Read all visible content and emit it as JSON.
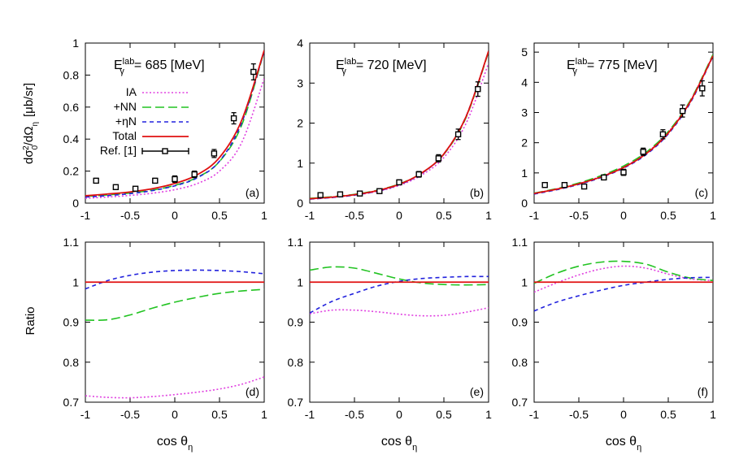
{
  "figure": {
    "ylabel_top_main": "dσ",
    "ylabel_top_sub": "0",
    "ylabel_top_sup": "2",
    "ylabel_top_rest": "/dΩ",
    "ylabel_top_rest_sub": "η",
    "ylabel_top_unit": "[μb/sr]",
    "ylabel_bottom": "Ratio",
    "xlabel_main": "cos θ",
    "xlabel_sub": "η",
    "energy_prefix": "E",
    "energy_sup": "lab",
    "energy_sub": "γ"
  },
  "legend": {
    "placement": "top-left (panel a)",
    "entries": [
      {
        "label": "IA",
        "color": "#e040e0",
        "dash": "dotted"
      },
      {
        "label": "+NN",
        "color": "#22c322",
        "dash": "long-dash"
      },
      {
        "label": "+ηN",
        "color": "#2222dd",
        "dash": "short-dash"
      },
      {
        "label": "Total",
        "color": "#e01010",
        "dash": "solid"
      },
      {
        "label": "Ref. [1]",
        "color": "#000000",
        "dash": "points"
      }
    ]
  },
  "colors": {
    "IA": "#e040e0",
    "NN": "#22c322",
    "etaN": "#2222dd",
    "Total": "#e01010",
    "data": "#000000"
  },
  "chart_data": [
    {
      "panel": "(a)",
      "type": "line",
      "energy_value": "= 685 [MeV]",
      "xlim": [
        -1,
        1
      ],
      "ylim": [
        0,
        1
      ],
      "xticks": [
        "-1",
        "-0.5",
        "0",
        "0.5",
        "1"
      ],
      "yticks": [
        "0",
        "0.2",
        "0.4",
        "0.6",
        "0.8",
        "1"
      ],
      "xlabel": "",
      "ylabel": "dσ_0^2/dΩ_η [μb/sr]",
      "series": [
        {
          "name": "IA",
          "x": [
            -1,
            -0.75,
            -0.5,
            -0.25,
            0,
            0.25,
            0.5,
            0.75,
            1
          ],
          "y": [
            0.03,
            0.038,
            0.048,
            0.062,
            0.084,
            0.122,
            0.2,
            0.38,
            0.78
          ]
        },
        {
          "name": "+NN",
          "x": [
            -1,
            -0.75,
            -0.5,
            -0.25,
            0,
            0.25,
            0.5,
            0.75,
            1
          ],
          "y": [
            0.042,
            0.051,
            0.063,
            0.081,
            0.111,
            0.161,
            0.26,
            0.49,
            0.95
          ]
        },
        {
          "name": "+ηN",
          "x": [
            -1,
            -0.75,
            -0.5,
            -0.25,
            0,
            0.25,
            0.5,
            0.75,
            1
          ],
          "y": [
            0.038,
            0.047,
            0.059,
            0.078,
            0.108,
            0.158,
            0.262,
            0.505,
            0.95
          ]
        },
        {
          "name": "Total",
          "x": [
            -1,
            -0.75,
            -0.5,
            -0.25,
            0,
            0.25,
            0.5,
            0.75,
            1
          ],
          "y": [
            0.046,
            0.057,
            0.07,
            0.09,
            0.123,
            0.177,
            0.285,
            0.52,
            0.955
          ]
        }
      ],
      "points": {
        "name": "Ref. [1]",
        "x": [
          -0.88,
          -0.66,
          -0.44,
          -0.22,
          0.0,
          0.22,
          0.44,
          0.66,
          0.88
        ],
        "y": [
          0.14,
          0.1,
          0.09,
          0.14,
          0.15,
          0.18,
          0.31,
          0.53,
          0.82
        ],
        "err": [
          0.015,
          0.012,
          0.012,
          0.015,
          0.02,
          0.02,
          0.025,
          0.035,
          0.05
        ]
      }
    },
    {
      "panel": "(b)",
      "type": "line",
      "energy_value": "= 720 [MeV]",
      "xlim": [
        -1,
        1
      ],
      "ylim": [
        0,
        4
      ],
      "xticks": [
        "-1",
        "-0.5",
        "0",
        "0.5",
        "1"
      ],
      "yticks": [
        "0",
        "1",
        "2",
        "3",
        "4"
      ],
      "xlabel": "",
      "ylabel": "",
      "series": [
        {
          "name": "IA",
          "x": [
            -1,
            -0.75,
            -0.5,
            -0.25,
            0,
            0.25,
            0.5,
            0.75,
            1
          ],
          "y": [
            0.1,
            0.14,
            0.2,
            0.29,
            0.44,
            0.7,
            1.14,
            2.0,
            3.5
          ]
        },
        {
          "name": "+NN",
          "x": [
            -1,
            -0.75,
            -0.5,
            -0.25,
            0,
            0.25,
            0.5,
            0.75,
            1
          ],
          "y": [
            0.12,
            0.16,
            0.22,
            0.32,
            0.48,
            0.75,
            1.22,
            2.15,
            3.78
          ]
        },
        {
          "name": "+ηN",
          "x": [
            -1,
            -0.75,
            -0.5,
            -0.25,
            0,
            0.25,
            0.5,
            0.75,
            1
          ],
          "y": [
            0.1,
            0.14,
            0.2,
            0.3,
            0.46,
            0.74,
            1.23,
            2.18,
            3.8
          ]
        },
        {
          "name": "Total",
          "x": [
            -1,
            -0.75,
            -0.5,
            -0.25,
            0,
            0.25,
            0.5,
            0.75,
            1
          ],
          "y": [
            0.11,
            0.15,
            0.21,
            0.31,
            0.47,
            0.75,
            1.23,
            2.17,
            3.8
          ]
        }
      ],
      "points": {
        "name": "Ref. [1]",
        "x": [
          -0.88,
          -0.66,
          -0.44,
          -0.22,
          0.0,
          0.22,
          0.44,
          0.66,
          0.88
        ],
        "y": [
          0.2,
          0.22,
          0.24,
          0.3,
          0.52,
          0.72,
          1.12,
          1.72,
          2.85
        ],
        "err": [
          0.04,
          0.04,
          0.04,
          0.05,
          0.06,
          0.07,
          0.09,
          0.13,
          0.18
        ]
      }
    },
    {
      "panel": "(c)",
      "type": "line",
      "energy_value": "= 775 [MeV]",
      "xlim": [
        -1,
        1
      ],
      "ylim": [
        0,
        5.3
      ],
      "xticks": [
        "-1",
        "-0.5",
        "0",
        "0.5",
        "1"
      ],
      "yticks": [
        "0",
        "1",
        "2",
        "3",
        "4",
        "5"
      ],
      "xlabel": "",
      "ylabel": "",
      "series": [
        {
          "name": "IA",
          "x": [
            -1,
            -0.75,
            -0.5,
            -0.25,
            0,
            0.25,
            0.5,
            0.75,
            1
          ],
          "y": [
            0.32,
            0.47,
            0.65,
            0.89,
            1.2,
            1.65,
            2.35,
            3.4,
            4.9
          ]
        },
        {
          "name": "+NN",
          "x": [
            -1,
            -0.75,
            -0.5,
            -0.25,
            0,
            0.25,
            0.5,
            0.75,
            1
          ],
          "y": [
            0.33,
            0.48,
            0.67,
            0.91,
            1.23,
            1.68,
            2.37,
            3.42,
            4.92
          ]
        },
        {
          "name": "+ηN",
          "x": [
            -1,
            -0.75,
            -0.5,
            -0.25,
            0,
            0.25,
            0.5,
            0.75,
            1
          ],
          "y": [
            0.3,
            0.44,
            0.62,
            0.85,
            1.16,
            1.6,
            2.29,
            3.34,
            4.86
          ]
        },
        {
          "name": "Total",
          "x": [
            -1,
            -0.75,
            -0.5,
            -0.25,
            0,
            0.25,
            0.5,
            0.75,
            1
          ],
          "y": [
            0.32,
            0.46,
            0.64,
            0.87,
            1.18,
            1.63,
            2.32,
            3.38,
            4.88
          ]
        }
      ],
      "points": {
        "name": "Ref. [1]",
        "x": [
          -0.88,
          -0.66,
          -0.44,
          -0.22,
          0.0,
          0.22,
          0.44,
          0.66,
          0.88
        ],
        "y": [
          0.6,
          0.6,
          0.55,
          0.85,
          1.02,
          1.7,
          2.28,
          3.05,
          3.8
        ],
        "err": [
          0.06,
          0.06,
          0.06,
          0.08,
          0.1,
          0.12,
          0.15,
          0.2,
          0.25
        ]
      }
    },
    {
      "panel": "(d)",
      "type": "line",
      "xlim": [
        -1,
        1
      ],
      "ylim": [
        0.7,
        1.1
      ],
      "xticks": [
        "-1",
        "-0.5",
        "0",
        "0.5",
        "1"
      ],
      "yticks": [
        "0.7",
        "0.8",
        "0.9",
        "1",
        "1.1"
      ],
      "xlabel": "cos θ_η",
      "ylabel": "Ratio",
      "series": [
        {
          "name": "IA",
          "x": [
            -1,
            -0.75,
            -0.5,
            -0.25,
            0,
            0.25,
            0.5,
            0.75,
            1
          ],
          "y": [
            0.716,
            0.712,
            0.711,
            0.714,
            0.719,
            0.725,
            0.733,
            0.745,
            0.763
          ]
        },
        {
          "name": "+NN",
          "x": [
            -1,
            -0.75,
            -0.5,
            -0.25,
            0,
            0.25,
            0.5,
            0.75,
            1
          ],
          "y": [
            0.905,
            0.906,
            0.918,
            0.935,
            0.95,
            0.962,
            0.972,
            0.978,
            0.982
          ]
        },
        {
          "name": "+ηN",
          "x": [
            -1,
            -0.75,
            -0.5,
            -0.25,
            0,
            0.25,
            0.5,
            0.75,
            1
          ],
          "y": [
            0.983,
            1.004,
            1.017,
            1.025,
            1.029,
            1.03,
            1.029,
            1.026,
            1.021
          ]
        },
        {
          "name": "Total",
          "x": [
            -1,
            1
          ],
          "y": [
            1.0,
            1.0
          ]
        }
      ]
    },
    {
      "panel": "(e)",
      "type": "line",
      "xlim": [
        -1,
        1
      ],
      "ylim": [
        0.7,
        1.1
      ],
      "xticks": [
        "-1",
        "-0.5",
        "0",
        "0.5",
        "1"
      ],
      "yticks": [
        "0.7",
        "0.8",
        "0.9",
        "1",
        "1.1"
      ],
      "xlabel": "cos θ_η",
      "ylabel": "",
      "series": [
        {
          "name": "IA",
          "x": [
            -1,
            -0.75,
            -0.5,
            -0.25,
            0,
            0.25,
            0.5,
            0.75,
            1
          ],
          "y": [
            0.921,
            0.93,
            0.93,
            0.926,
            0.92,
            0.916,
            0.917,
            0.925,
            0.936
          ]
        },
        {
          "name": "+NN",
          "x": [
            -1,
            -0.75,
            -0.5,
            -0.25,
            0,
            0.25,
            0.5,
            0.75,
            1
          ],
          "y": [
            1.03,
            1.038,
            1.035,
            1.022,
            1.008,
            0.998,
            0.994,
            0.993,
            0.994
          ]
        },
        {
          "name": "+ηN",
          "x": [
            -1,
            -0.75,
            -0.5,
            -0.25,
            0,
            0.25,
            0.5,
            0.75,
            1
          ],
          "y": [
            0.923,
            0.952,
            0.972,
            0.99,
            1.002,
            1.009,
            1.012,
            1.014,
            1.014
          ]
        },
        {
          "name": "Total",
          "x": [
            -1,
            1
          ],
          "y": [
            1.0,
            1.0
          ]
        }
      ]
    },
    {
      "panel": "(f)",
      "type": "line",
      "xlim": [
        -1,
        1
      ],
      "ylim": [
        0.7,
        1.1
      ],
      "xticks": [
        "-1",
        "-0.5",
        "0",
        "0.5",
        "1"
      ],
      "yticks": [
        "0.7",
        "0.8",
        "0.9",
        "1",
        "1.1"
      ],
      "xlabel": "cos θ_η",
      "ylabel": "",
      "series": [
        {
          "name": "IA",
          "x": [
            -1,
            -0.75,
            -0.5,
            -0.25,
            0,
            0.25,
            0.5,
            0.75,
            1
          ],
          "y": [
            0.975,
            0.998,
            1.018,
            1.033,
            1.04,
            1.035,
            1.02,
            1.008,
            1.004
          ]
        },
        {
          "name": "+NN",
          "x": [
            -1,
            -0.75,
            -0.5,
            -0.25,
            0,
            0.25,
            0.5,
            0.75,
            1
          ],
          "y": [
            0.997,
            1.022,
            1.04,
            1.05,
            1.052,
            1.045,
            1.025,
            1.01,
            1.004
          ]
        },
        {
          "name": "+ηN",
          "x": [
            -1,
            -0.75,
            -0.5,
            -0.25,
            0,
            0.25,
            0.5,
            0.75,
            1
          ],
          "y": [
            0.928,
            0.95,
            0.966,
            0.98,
            0.992,
            1.0,
            1.007,
            1.011,
            1.012
          ]
        },
        {
          "name": "Total",
          "x": [
            -1,
            1
          ],
          "y": [
            1.0,
            1.0
          ]
        }
      ]
    }
  ]
}
